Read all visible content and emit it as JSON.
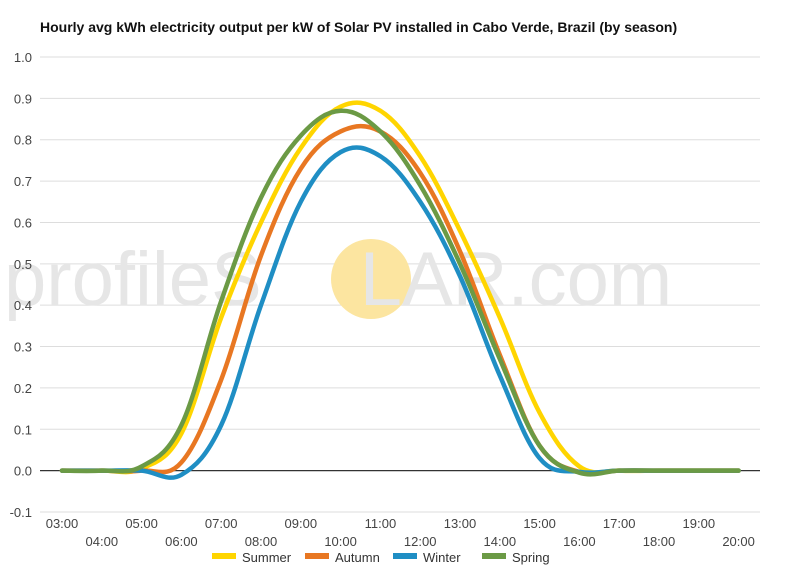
{
  "chart_data": {
    "type": "line",
    "title": "Hourly avg kWh electricity output per kW of Solar PV installed in Cabo Verde, Brazil (by season)",
    "xlabel": "",
    "ylabel": "",
    "x": [
      "03:00",
      "04:00",
      "05:00",
      "06:00",
      "07:00",
      "08:00",
      "09:00",
      "10:00",
      "11:00",
      "12:00",
      "13:00",
      "14:00",
      "15:00",
      "16:00",
      "17:00",
      "18:00",
      "19:00",
      "20:00"
    ],
    "ylim": [
      -0.1,
      1.0
    ],
    "yticks": [
      -0.1,
      0.0,
      0.1,
      0.2,
      0.3,
      0.4,
      0.5,
      0.6,
      0.7,
      0.8,
      0.9,
      1.0
    ],
    "grid": true,
    "legend_position": "bottom",
    "series": [
      {
        "name": "Summer",
        "color": "#FFD500",
        "values": [
          0.0,
          0.0,
          0.005,
          0.09,
          0.37,
          0.6,
          0.78,
          0.88,
          0.87,
          0.76,
          0.58,
          0.37,
          0.14,
          0.01,
          0.0,
          0.0,
          0.0,
          0.0
        ]
      },
      {
        "name": "Autumn",
        "color": "#E87722",
        "values": [
          0.0,
          0.0,
          0.0,
          0.02,
          0.22,
          0.52,
          0.73,
          0.82,
          0.82,
          0.72,
          0.53,
          0.28,
          0.06,
          -0.003,
          0.0,
          0.0,
          0.0,
          0.0
        ]
      },
      {
        "name": "Winter",
        "color": "#1F8EC4",
        "values": [
          0.0,
          0.0,
          0.0,
          -0.01,
          0.11,
          0.4,
          0.65,
          0.77,
          0.76,
          0.65,
          0.47,
          0.23,
          0.03,
          -0.003,
          0.0,
          0.0,
          0.0,
          0.0
        ]
      },
      {
        "name": "Spring",
        "color": "#6B9A45",
        "values": [
          0.0,
          0.0,
          0.01,
          0.11,
          0.41,
          0.66,
          0.81,
          0.87,
          0.82,
          0.69,
          0.5,
          0.27,
          0.06,
          -0.005,
          0.0,
          0.0,
          0.0,
          0.0
        ]
      }
    ]
  },
  "watermark": {
    "text_before": "profileS",
    "text_after": "LAR.com",
    "sun_color": "#FCE5A0"
  }
}
